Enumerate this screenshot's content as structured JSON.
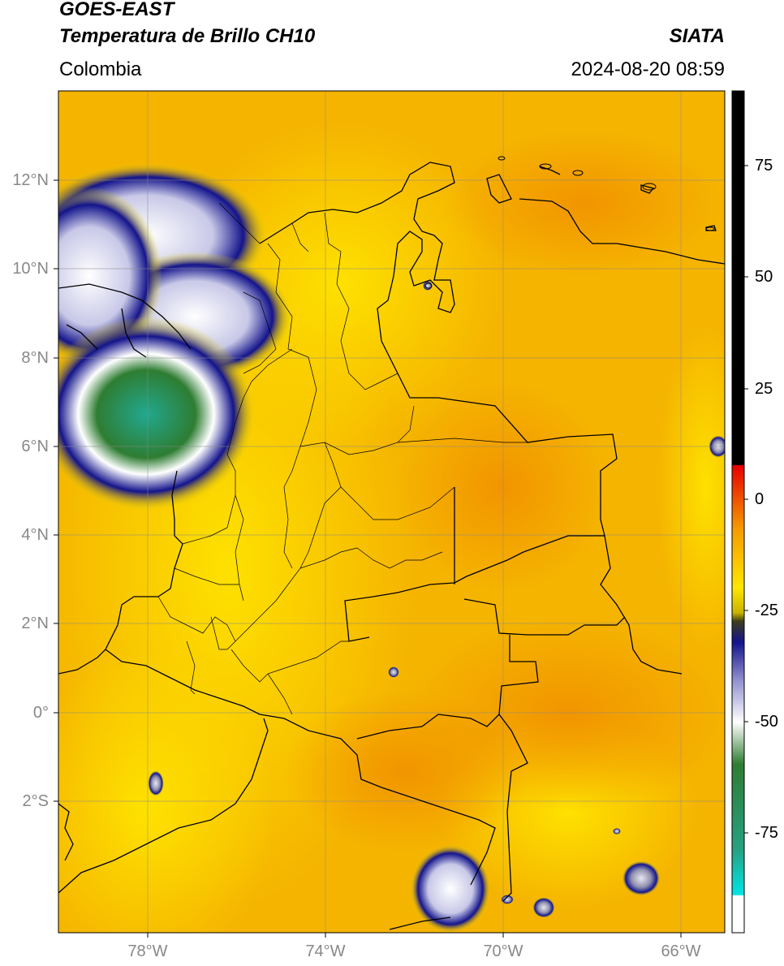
{
  "header": {
    "satellite": "GOES-EAST",
    "product": "Temperatura de Brillo CH10",
    "agency": "SIATA",
    "region": "Colombia",
    "datetime": "2024-08-20 08:59"
  },
  "map": {
    "lon_range": [
      -80,
      -65
    ],
    "lat_range": [
      -5,
      14
    ],
    "lat_ticks": [
      "12°N",
      "10°N",
      "8°N",
      "6°N",
      "4°N",
      "2°N",
      "0°",
      "2°S"
    ],
    "lon_ticks": [
      "78°W",
      "74°W",
      "70°W",
      "66°W"
    ],
    "background_color": "#f5b700",
    "border_color": "#000000"
  },
  "colorbar": {
    "range": [
      -95,
      90
    ],
    "ticks": [
      "75",
      "50",
      "25",
      "0",
      "-25",
      "-50",
      "-75"
    ],
    "colors": {
      "black": "#000000",
      "red": "#e60000",
      "orange": "#f59a00",
      "yellow": "#ffe600",
      "dark_olive": "#3d3d1a",
      "navy": "#14148c",
      "white": "#ffffff",
      "green": "#2e7d32",
      "cyan": "#00e5e5"
    }
  }
}
